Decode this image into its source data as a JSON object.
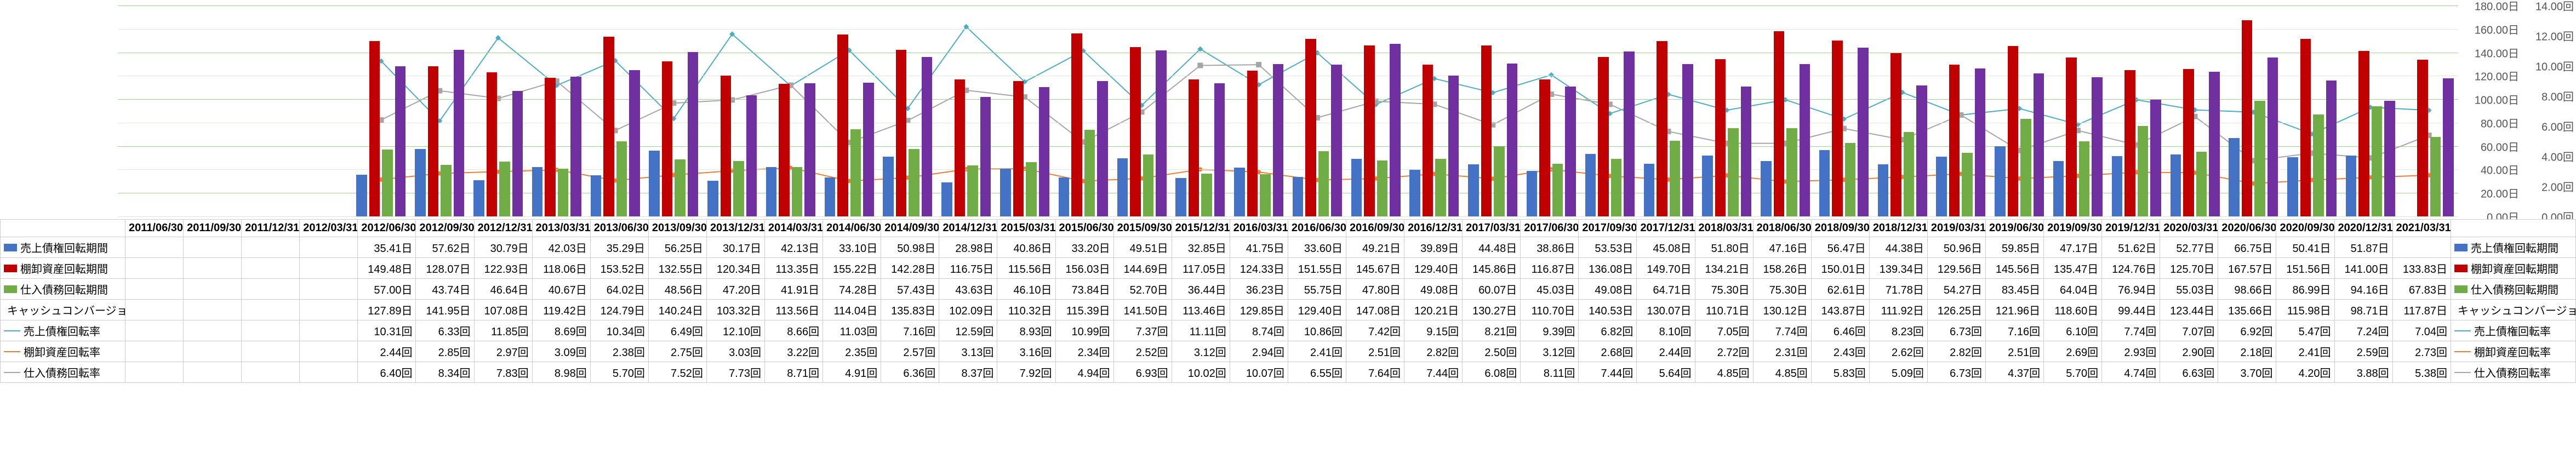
{
  "chart": {
    "type": "bar+line",
    "background_color": "#ffffff",
    "grid_colors": [
      "#a0d090",
      "#d8ecd8"
    ],
    "y_left": {
      "min": 0,
      "max": 180,
      "step": 20,
      "unit": "日"
    },
    "y_right": {
      "min": 0,
      "max": 14,
      "step": 2,
      "unit": "回"
    },
    "periods": [
      "2011/06/30",
      "2011/09/30",
      "2011/12/31",
      "2012/03/31",
      "2012/06/30",
      "2012/09/30",
      "2012/12/31",
      "2013/03/31",
      "2013/06/30",
      "2013/09/30",
      "2013/12/31",
      "2014/03/31",
      "2014/06/30",
      "2014/09/30",
      "2014/12/31",
      "2015/03/31",
      "2015/06/30",
      "2015/09/30",
      "2015/12/31",
      "2016/03/31",
      "2016/06/30",
      "2016/09/30",
      "2016/12/31",
      "2017/03/31",
      "2017/06/30",
      "2017/09/30",
      "2017/12/31",
      "2018/03/31",
      "2018/06/30",
      "2018/09/30",
      "2018/12/31",
      "2019/03/31",
      "2019/06/30",
      "2019/09/30",
      "2019/12/31",
      "2020/03/31",
      "2020/06/30",
      "2020/09/30",
      "2020/12/31",
      "2021/03/31"
    ],
    "series_bars": [
      {
        "key": "sales_receivable_period",
        "label": "売上債権回転期間",
        "color": "#4472c4",
        "unit": "日",
        "values": [
          null,
          null,
          null,
          null,
          35.41,
          57.62,
          30.79,
          42.03,
          35.29,
          56.25,
          30.17,
          42.13,
          33.1,
          50.98,
          28.98,
          40.86,
          33.2,
          49.51,
          32.85,
          41.75,
          33.6,
          49.21,
          39.89,
          44.48,
          38.86,
          53.53,
          45.08,
          51.8,
          47.16,
          56.47,
          44.38,
          50.96,
          59.85,
          47.17,
          51.62,
          52.77,
          66.75,
          50.41,
          51.87,
          null
        ]
      },
      {
        "key": "inventory_period",
        "label": "棚卸資産回転期間",
        "color": "#c00000",
        "unit": "日",
        "values": [
          null,
          null,
          null,
          null,
          149.48,
          128.07,
          122.93,
          118.06,
          153.52,
          132.55,
          120.34,
          113.35,
          155.22,
          142.28,
          116.75,
          115.56,
          156.03,
          144.69,
          117.05,
          124.33,
          151.55,
          145.67,
          129.4,
          145.86,
          116.87,
          136.08,
          149.7,
          134.21,
          158.26,
          150.01,
          139.34,
          129.56,
          145.56,
          135.47,
          124.76,
          125.7,
          167.57,
          151.56,
          141.0,
          133.83
        ]
      },
      {
        "key": "payable_period",
        "label": "仕入債務回転期間",
        "color": "#70ad47",
        "unit": "日",
        "values": [
          null,
          null,
          null,
          null,
          57.0,
          43.74,
          46.64,
          40.67,
          64.02,
          48.56,
          47.2,
          41.91,
          74.28,
          57.43,
          43.63,
          46.1,
          73.84,
          52.7,
          36.44,
          36.23,
          55.75,
          47.8,
          49.08,
          60.07,
          45.03,
          49.08,
          64.71,
          75.3,
          75.3,
          62.61,
          71.78,
          54.27,
          83.45,
          64.04,
          76.94,
          55.03,
          98.66,
          86.99,
          94.16,
          67.83
        ]
      },
      {
        "key": "ccc",
        "label": "キャッシュコンバージョンサイクル",
        "color": "#7030a0",
        "unit": "日",
        "values": [
          null,
          null,
          null,
          null,
          127.89,
          141.95,
          107.08,
          119.42,
          124.79,
          140.24,
          103.32,
          113.56,
          114.04,
          135.83,
          102.09,
          110.32,
          115.39,
          141.5,
          113.46,
          129.85,
          129.4,
          147.08,
          120.21,
          130.27,
          110.7,
          140.53,
          130.07,
          110.71,
          130.12,
          143.87,
          111.92,
          126.25,
          121.96,
          118.6,
          99.44,
          123.44,
          135.66,
          115.98,
          98.71,
          117.87
        ]
      }
    ],
    "series_lines": [
      {
        "key": "sales_receivable_turnover",
        "label": "売上債権回転率",
        "color": "#4bacc6",
        "marker": "diamond",
        "unit": "回",
        "values": [
          null,
          null,
          null,
          null,
          10.31,
          6.33,
          11.85,
          8.69,
          10.34,
          6.49,
          12.1,
          8.66,
          11.03,
          7.16,
          12.59,
          8.93,
          10.99,
          7.37,
          11.11,
          8.74,
          10.86,
          7.42,
          9.15,
          8.21,
          9.39,
          6.82,
          8.1,
          7.05,
          7.74,
          6.46,
          8.23,
          6.73,
          7.16,
          6.1,
          7.74,
          7.07,
          6.92,
          5.47,
          7.24,
          7.04
        ]
      },
      {
        "key": "inventory_turnover",
        "label": "棚卸資産回転率",
        "color": "#ed7d31",
        "marker": "circle",
        "unit": "回",
        "values": [
          null,
          null,
          null,
          null,
          2.44,
          2.85,
          2.97,
          3.09,
          2.38,
          2.75,
          3.03,
          3.22,
          2.35,
          2.57,
          3.13,
          3.16,
          2.34,
          2.52,
          3.12,
          2.94,
          2.41,
          2.51,
          2.82,
          2.5,
          3.12,
          2.68,
          2.44,
          2.72,
          2.31,
          2.43,
          2.62,
          2.82,
          2.51,
          2.69,
          2.93,
          2.9,
          2.18,
          2.41,
          2.59,
          2.73
        ]
      },
      {
        "key": "payable_turnover",
        "label": "仕入債務回転率",
        "color": "#a5a5a5",
        "marker": "square",
        "unit": "回",
        "values": [
          null,
          null,
          null,
          null,
          6.4,
          8.34,
          7.83,
          8.98,
          5.7,
          7.52,
          7.73,
          8.71,
          4.91,
          6.36,
          8.37,
          7.92,
          4.94,
          6.93,
          10.02,
          10.07,
          6.55,
          7.64,
          7.44,
          6.08,
          8.11,
          7.44,
          5.64,
          4.85,
          4.85,
          5.83,
          5.09,
          6.73,
          4.37,
          5.7,
          4.74,
          6.63,
          3.7,
          4.2,
          3.88,
          5.38
        ]
      }
    ]
  },
  "row_labels": {
    "header_blank": "",
    "sales_receivable_period": "売上債権回転期間",
    "inventory_period": "棚卸資産回転期間",
    "payable_period": "仕入債務回転期間",
    "ccc": "キャッシュコンバージョンサイクル",
    "sales_receivable_turnover": "売上債権回転率",
    "inventory_turnover": "棚卸資産回転率",
    "payable_turnover": "仕入債務回転率"
  }
}
